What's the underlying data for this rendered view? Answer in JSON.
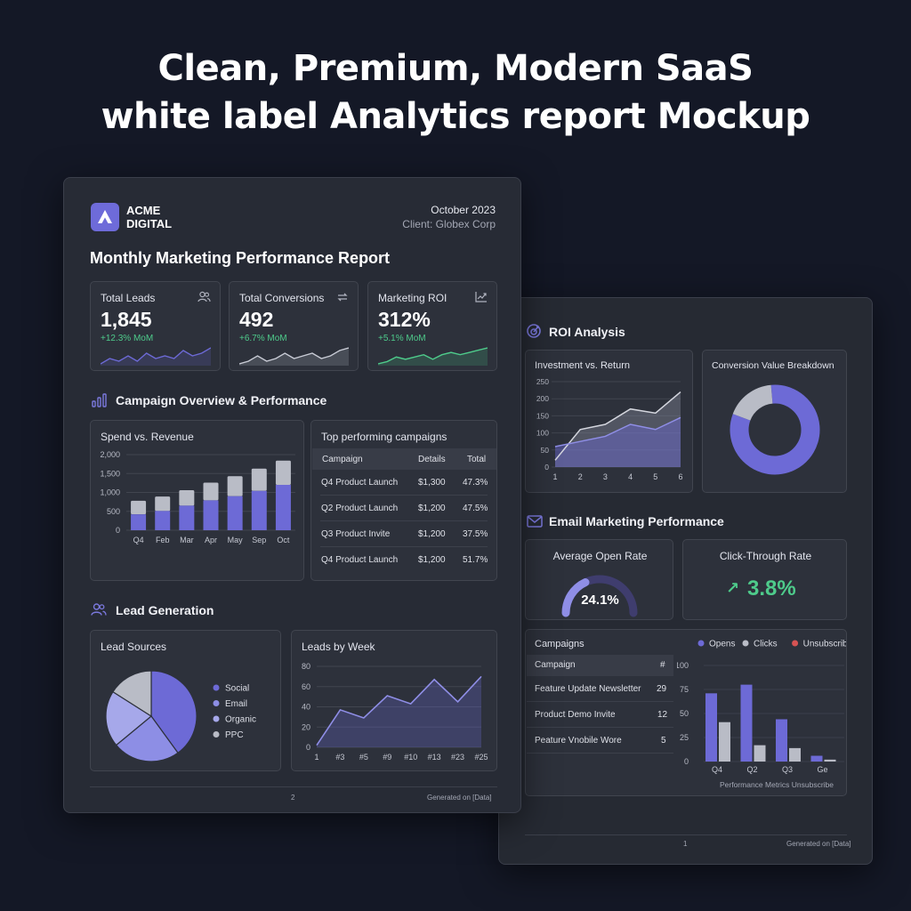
{
  "hero": {
    "line1": "Clean, Premium, Modern SaaS",
    "line2": "white label Analytics report Mockup"
  },
  "report1": {
    "brand": {
      "line1": "ACME",
      "line2": "DIGITAL",
      "logo_icon": "triangle-logo-icon"
    },
    "date": "October 2023",
    "client": "Client: Globex Corp",
    "title": "Monthly Marketing Performance Report",
    "kpis": [
      {
        "label": "Total Leads",
        "value": "1,845",
        "change": "+12.3% MoM",
        "icon": "users-icon",
        "sparkline": [
          3,
          5,
          4,
          6,
          4,
          7,
          5,
          6,
          5,
          8,
          6,
          7,
          9
        ]
      },
      {
        "label": "Total Conversions",
        "value": "492",
        "change": "+6.7% MoM",
        "icon": "refresh-icon",
        "sparkline": [
          3,
          4,
          6,
          4,
          5,
          7,
          5,
          6,
          7,
          5,
          6,
          8,
          9
        ]
      },
      {
        "label": "Marketing ROI",
        "value": "312%",
        "change": "+5.1% MoM",
        "icon": "trend-up-icon",
        "sparkline": [
          2,
          3,
          5,
          4,
          5,
          6,
          4,
          6,
          7,
          6,
          7,
          8,
          9
        ]
      }
    ],
    "campaign_section": "Campaign Overview & Performance",
    "spend_title": "Spend vs. Revenue",
    "top_campaigns": {
      "title": "Top performing campaigns",
      "headers": [
        "Campaign",
        "Details",
        "Total"
      ],
      "rows": [
        [
          "Q4 Product Launch",
          "$1,300",
          "47.3%"
        ],
        [
          "Q2 Product Launch",
          "$1,200",
          "47.5%"
        ],
        [
          "Q3 Product Invite",
          "$1,200",
          "37.5%"
        ],
        [
          "Q4 Product Launch",
          "$1,200",
          "51.7%"
        ]
      ]
    },
    "lead_section": "Lead Generation",
    "lead_sources_title": "Lead Sources",
    "leads_week_title": "Leads by Week",
    "footer": {
      "page": "2",
      "generated": "Generated on [Data]"
    }
  },
  "report2": {
    "roi_section": "ROI Analysis",
    "invest_title": "Investment vs. Return",
    "conversion_title": "Conversion Value Breakdown",
    "email_section": "Email Marketing Performance",
    "open_rate": {
      "label": "Average Open Rate",
      "value": "24.1%",
      "fraction": 0.241
    },
    "ctr": {
      "label": "Click-Through Rate",
      "value": "3.8%",
      "arrow": "↗"
    },
    "campaigns": {
      "title": "Campaigns",
      "headers": [
        "Campaign",
        "#"
      ],
      "rows": [
        [
          "Feature Update Newsletter",
          "29"
        ],
        [
          "Product Demo Invite",
          "12"
        ],
        [
          "Peature Vnobile Wore",
          "5"
        ]
      ]
    },
    "footer": {
      "page": "1",
      "generated": "Generated on [Data]"
    }
  },
  "colors": {
    "accent": "#6d6ad6",
    "accent_light": "#8f8ee6",
    "accent_pale": "#a9aae9",
    "gray_bar": "#b9bcc6",
    "green": "#4ecb8b",
    "red": "#d65353"
  },
  "chart_data": [
    {
      "id": "spend-vs-revenue",
      "type": "bar",
      "title": "Spend vs. Revenue",
      "categories": [
        "Q4",
        "Feb",
        "Mar",
        "Apr",
        "May",
        "Sep",
        "Oct"
      ],
      "series": [
        {
          "values": [
            420,
            510,
            650,
            790,
            900,
            1040,
            1200
          ]
        },
        {
          "values": [
            780,
            890,
            1060,
            1260,
            1430,
            1630,
            1840
          ]
        }
      ],
      "stacked_overlay": true,
      "ylim": [
        0,
        2000
      ],
      "yticks": [
        "2,000",
        "1,500",
        "1,000",
        "500",
        "0"
      ],
      "ytick_values": [
        2000,
        1500,
        1000,
        500,
        0
      ]
    },
    {
      "id": "lead-sources",
      "type": "pie",
      "title": "Lead Sources",
      "labels": [
        "Social",
        "Email",
        "Organic",
        "PPC"
      ],
      "values": [
        40,
        24,
        20,
        16
      ],
      "slice_colors": [
        "#6d6ad6",
        "#8d8ee5",
        "#a6a8ea",
        "#b9bcc6"
      ],
      "legend_position": "right"
    },
    {
      "id": "leads-by-week",
      "type": "area",
      "title": "Leads by Week",
      "x": [
        "1",
        "#3",
        "#5",
        "#9",
        "#10",
        "#13",
        "#23",
        "#25"
      ],
      "values": [
        2,
        37,
        29,
        51,
        43,
        67,
        45,
        70
      ],
      "ylim": [
        0,
        80
      ],
      "yticks": [
        80,
        60,
        40,
        20,
        0
      ]
    },
    {
      "id": "investment-vs-return",
      "type": "area",
      "title": "Investment vs. Return",
      "x": [
        "1",
        "2",
        "3",
        "4",
        "5",
        "6"
      ],
      "series": [
        {
          "values": [
            20,
            110,
            125,
            170,
            158,
            220
          ]
        },
        {
          "values": [
            60,
            75,
            90,
            125,
            110,
            145
          ]
        }
      ],
      "ylim": [
        0,
        250
      ],
      "yticks": [
        250,
        200,
        150,
        100,
        50,
        0
      ]
    },
    {
      "id": "conversion-value-breakdown",
      "type": "pie",
      "title": "Conversion Value Breakdown",
      "values": [
        82,
        18
      ],
      "slice_colors": [
        "#6d6ad6",
        "#b9bcc6"
      ],
      "donut": true
    },
    {
      "id": "email-campaign-metrics",
      "type": "bar",
      "title": "Performance Metrics Unsubscribe",
      "categories": [
        "Q4",
        "Q2",
        "Q3",
        "Ge"
      ],
      "series": [
        {
          "name": "Opens",
          "values": [
            71,
            80,
            44,
            6
          ]
        },
        {
          "name": "Clicks",
          "values": [
            41,
            17,
            14,
            2
          ]
        },
        {
          "name": "Unsubscribes",
          "values": [
            0,
            0,
            0,
            0
          ]
        }
      ],
      "series_colors": [
        "#6d6ad6",
        "#b9bcc6",
        "#d65353"
      ],
      "ylim": [
        0,
        100
      ],
      "yticks": [
        100,
        75,
        50,
        25,
        0
      ],
      "legend_position": "top"
    }
  ]
}
